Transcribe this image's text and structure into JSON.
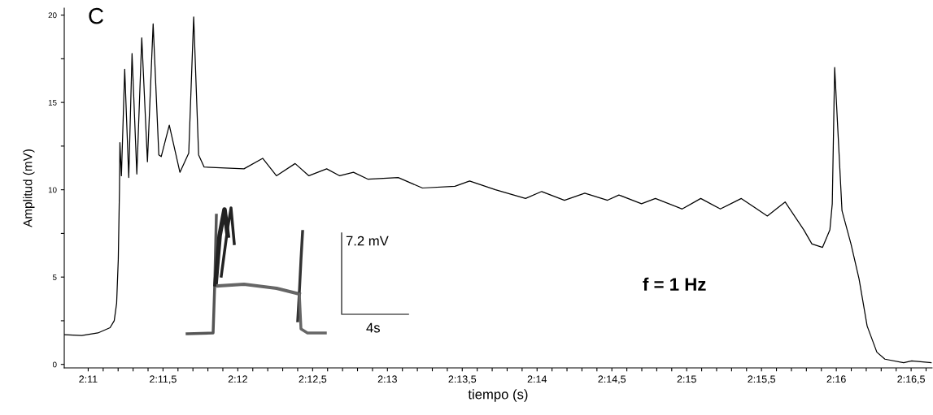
{
  "chart_data": {
    "type": "line",
    "xlabel": "tiempo (s)",
    "ylabel": "Amplitud (mV)",
    "series": [
      {
        "color": "#000000",
        "x": [
          130.843,
          130.957,
          131.065,
          131.146,
          131.174,
          131.19,
          131.201,
          131.209,
          131.212,
          131.222,
          131.244,
          131.271,
          131.293,
          131.325,
          131.358,
          131.396,
          131.434,
          131.472,
          131.488,
          131.542,
          131.613,
          131.672,
          131.705,
          131.738,
          131.775,
          132.041,
          132.166,
          132.258,
          132.383,
          132.475,
          132.594,
          132.681,
          132.773,
          132.871,
          133.072,
          133.234,
          133.451,
          133.549,
          133.722,
          133.923,
          134.031,
          134.183,
          134.319,
          134.471,
          134.547,
          134.698,
          134.791,
          134.97,
          135.094,
          135.225,
          135.365,
          135.539,
          135.658,
          135.783,
          135.837,
          135.908,
          135.957,
          135.973,
          135.989,
          136.038,
          136.098,
          136.152,
          136.206,
          136.271,
          136.325,
          136.45,
          136.504,
          136.634
        ],
        "values": [
          1.7,
          1.65,
          1.8,
          2.1,
          2.5,
          3.5,
          6,
          10,
          12.7,
          10.8,
          16.9,
          10.7,
          17.8,
          10.9,
          18.7,
          11.6,
          19.5,
          12,
          11.9,
          13.7,
          11,
          12.1,
          19.9,
          12,
          11.3,
          11.2,
          11.8,
          10.8,
          11.5,
          10.8,
          11.2,
          10.8,
          11,
          10.6,
          10.7,
          10.1,
          10.2,
          10.5,
          10,
          9.5,
          9.9,
          9.4,
          9.8,
          9.4,
          9.7,
          9.2,
          9.5,
          8.9,
          9.5,
          8.9,
          9.5,
          8.5,
          9.3,
          7.7,
          6.9,
          6.7,
          7.7,
          9.2,
          17,
          8.8,
          6.9,
          4.9,
          2.2,
          0.7,
          0.3,
          0.1,
          0.2,
          0.1
        ]
      }
    ],
    "xlim": [
      130.84,
      136.64
    ],
    "xticks": [
      {
        "value": 131,
        "label": "2:11"
      },
      {
        "value": 131.1,
        "label": null
      },
      {
        "value": 131.2,
        "label": null
      },
      {
        "value": 131.3,
        "label": null
      },
      {
        "value": 131.4,
        "label": null
      },
      {
        "value": 131.5,
        "label": "2:11,5"
      },
      {
        "value": 131.6,
        "label": null
      },
      {
        "value": 131.7,
        "label": null
      },
      {
        "value": 131.8,
        "label": null
      },
      {
        "value": 131.9,
        "label": null
      },
      {
        "value": 132,
        "label": "2:12"
      },
      {
        "value": 132.1,
        "label": null
      },
      {
        "value": 132.2,
        "label": null
      },
      {
        "value": 132.3,
        "label": null
      },
      {
        "value": 132.4,
        "label": null
      },
      {
        "value": 132.5,
        "label": "2:12,5"
      },
      {
        "value": 132.6,
        "label": null
      },
      {
        "value": 132.7,
        "label": null
      },
      {
        "value": 132.8,
        "label": null
      },
      {
        "value": 132.9,
        "label": null
      },
      {
        "value": 133,
        "label": "2:13"
      },
      {
        "value": 133.1,
        "label": null
      },
      {
        "value": 133.2,
        "label": null
      },
      {
        "value": 133.3,
        "label": null
      },
      {
        "value": 133.4,
        "label": null
      },
      {
        "value": 133.5,
        "label": "2:13,5"
      },
      {
        "value": 133.6,
        "label": null
      },
      {
        "value": 133.7,
        "label": null
      },
      {
        "value": 133.8,
        "label": null
      },
      {
        "value": 133.9,
        "label": null
      },
      {
        "value": 134,
        "label": "2:14"
      },
      {
        "value": 134.1,
        "label": null
      },
      {
        "value": 134.2,
        "label": null
      },
      {
        "value": 134.3,
        "label": null
      },
      {
        "value": 134.4,
        "label": null
      },
      {
        "value": 134.5,
        "label": "2:14,5"
      },
      {
        "value": 134.6,
        "label": null
      },
      {
        "value": 134.7,
        "label": null
      },
      {
        "value": 134.8,
        "label": null
      },
      {
        "value": 134.9,
        "label": null
      },
      {
        "value": 135,
        "label": "2:15"
      },
      {
        "value": 135.1,
        "label": null
      },
      {
        "value": 135.2,
        "label": null
      },
      {
        "value": 135.3,
        "label": null
      },
      {
        "value": 135.4,
        "label": null
      },
      {
        "value": 135.5,
        "label": "2:15,5"
      },
      {
        "value": 135.6,
        "label": null
      },
      {
        "value": 135.7,
        "label": null
      },
      {
        "value": 135.8,
        "label": null
      },
      {
        "value": 135.9,
        "label": null
      },
      {
        "value": 136,
        "label": "2:16"
      },
      {
        "value": 136.1,
        "label": null
      },
      {
        "value": 136.2,
        "label": null
      },
      {
        "value": 136.3,
        "label": null
      },
      {
        "value": 136.4,
        "label": null
      },
      {
        "value": 136.5,
        "label": "2:16,5"
      },
      {
        "value": 136.6,
        "label": null
      }
    ],
    "ylim": [
      -0.2,
      20.4
    ],
    "yticks": [
      0,
      {
        "value": 2.5,
        "label": null
      },
      5,
      {
        "value": 7.5,
        "label": null
      },
      10,
      {
        "value": 12.5,
        "label": null
      },
      15,
      {
        "value": 17.5,
        "label": null
      },
      20
    ],
    "annotations": [
      "C",
      "f = 1 Hz",
      "7.2 mV",
      "4s"
    ],
    "grid": false,
    "legend": false,
    "marker": "none",
    "line_style": "solid"
  }
}
